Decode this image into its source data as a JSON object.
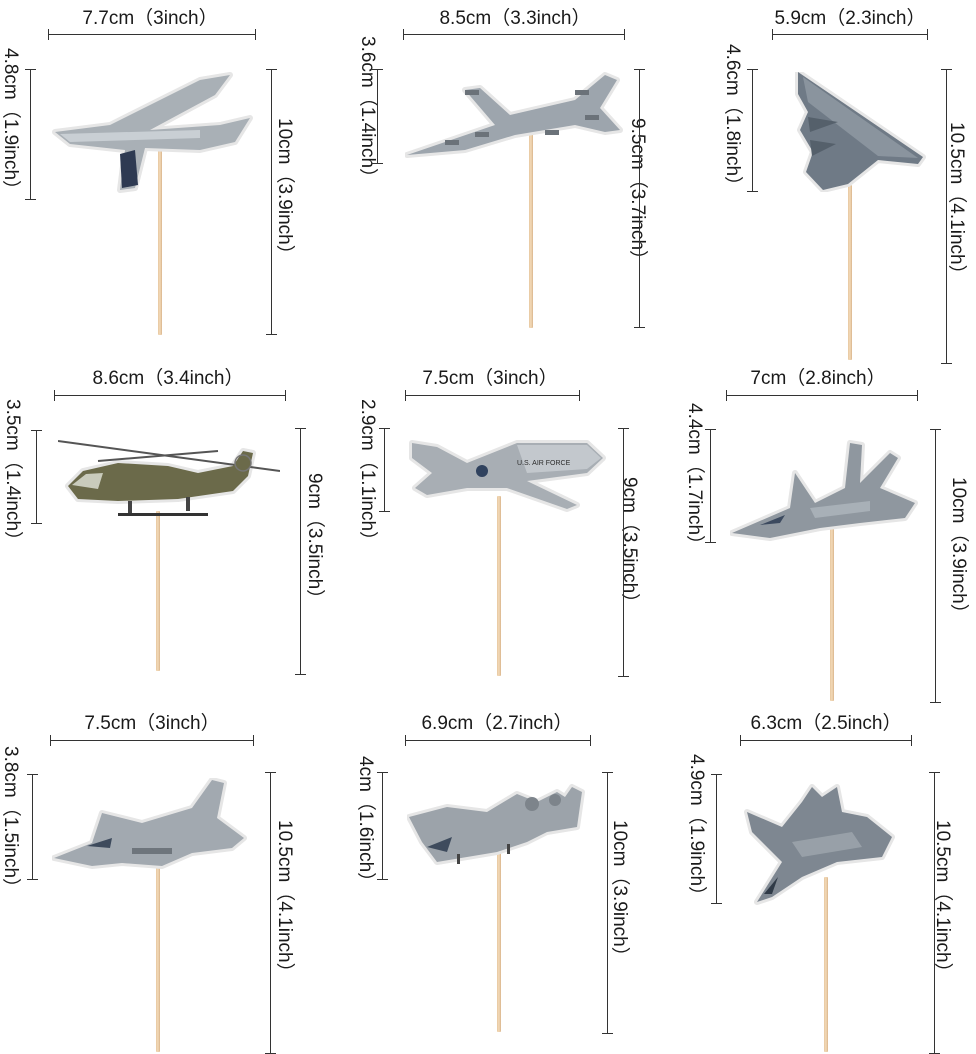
{
  "toppers": [
    {
      "name": "transport-jet",
      "width": "7.7cm（3inch）",
      "height": "4.8cm（1.9inch）",
      "total": "10cm（3.9inch）"
    },
    {
      "name": "b52-bomber",
      "width": "8.5cm（3.3inch）",
      "height": "3.6cm（1.4inch）",
      "total": "9.5cm（3.7inch）"
    },
    {
      "name": "stealth-bomber",
      "width": "5.9cm（2.3inch）",
      "height": "4.6cm（1.8inch）",
      "total": "10.5cm（4.1inch）"
    },
    {
      "name": "helicopter",
      "width": "8.6cm（3.4inch）",
      "height": "3.5cm（1.4inch）",
      "total": "9cm（3.5inch）"
    },
    {
      "name": "drone",
      "width": "7.5cm（3inch）",
      "height": "2.9cm（1.1inch）",
      "total": "9cm（3.5inch）"
    },
    {
      "name": "f15-fighter",
      "width": "7cm（2.8inch）",
      "height": "4.4cm（1.7inch）",
      "total": "10cm（3.9inch）"
    },
    {
      "name": "f16-fighter",
      "width": "7.5cm（3inch）",
      "height": "3.8cm（1.5inch）",
      "total": "10.5cm（4.1inch）"
    },
    {
      "name": "a10-attack",
      "width": "6.9cm（2.7inch）",
      "height": "4cm（1.6inch）",
      "total": "10cm（3.9inch）"
    },
    {
      "name": "f22-fighter",
      "width": "6.3cm（2.5inch）",
      "height": "4.9cm（1.9inch）",
      "total": "10.5cm（4.1inch）"
    }
  ],
  "colors": {
    "line": "#333333",
    "aircraft": "#9aa3ab",
    "stick": "#e8c8a0"
  }
}
